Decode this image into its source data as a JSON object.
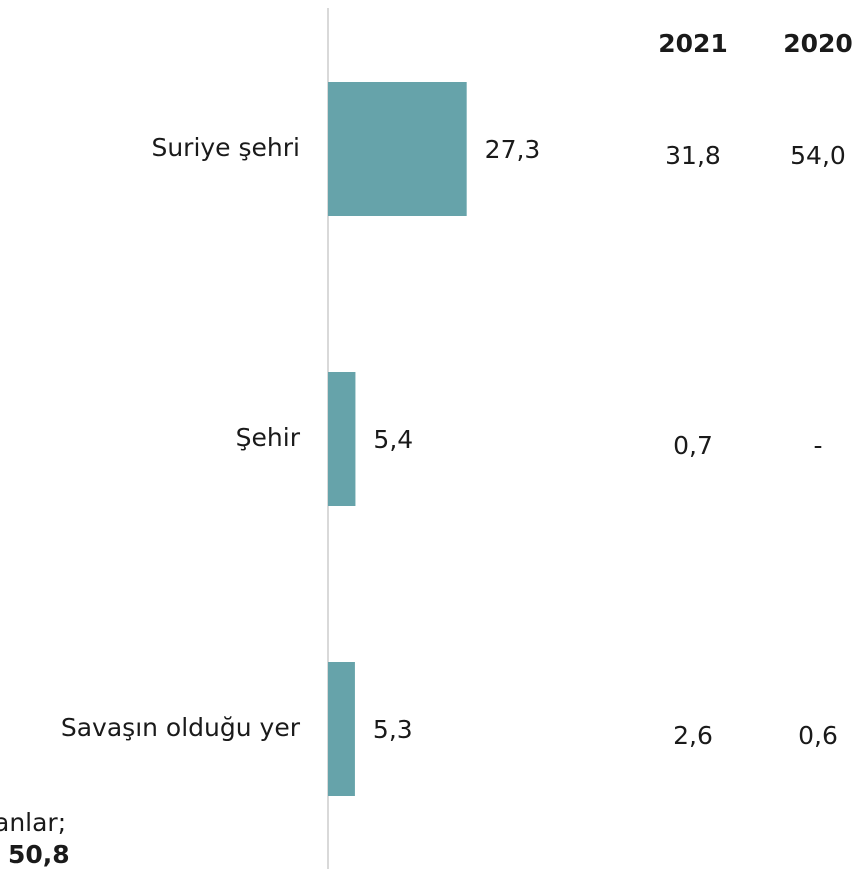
{
  "chart_data": {
    "type": "bar",
    "orientation": "horizontal",
    "categories": [
      "Suriye şehri",
      "Şehir",
      "Savaşın olduğu yer"
    ],
    "values": [
      27.3,
      5.4,
      5.3
    ],
    "value_labels": [
      "27,3",
      "5,4",
      "5,3"
    ],
    "xlim": [
      0,
      60
    ],
    "grid": false,
    "bar_color": "#66a3aa",
    "axis_color": "#d9d9d9",
    "comparison_columns": [
      {
        "header": "2021",
        "values": [
          31.8,
          0.7,
          2.6
        ],
        "labels": [
          "31,8",
          "0,7",
          "2,6"
        ]
      },
      {
        "header": "2020",
        "values": [
          54.0,
          null,
          0.6
        ],
        "labels": [
          "54,0",
          "-",
          "0,6"
        ]
      }
    ],
    "footnote": {
      "line1": "anlar;",
      "line2": "50,8"
    }
  }
}
